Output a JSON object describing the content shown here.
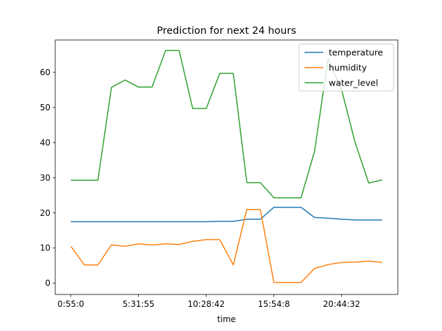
{
  "chart_data": {
    "type": "line",
    "title": "Prediction for next 24 hours",
    "xlabel": "time",
    "ylabel": "",
    "grid": false,
    "legend_position": "top-right",
    "x_ticks": [
      "0:55:0",
      "5:31:55",
      "10:28:42",
      "15:54:8",
      "20:44:32"
    ],
    "x_tick_index": [
      0,
      5,
      10,
      15,
      20
    ],
    "xlim": [
      -1.15,
      24.15
    ],
    "ylim": [
      -3.2,
      69.2
    ],
    "y_ticks": [
      0,
      10,
      20,
      30,
      40,
      50,
      60
    ],
    "series": [
      {
        "name": "temperature",
        "color": "#1f77b4",
        "values": [
          17.5,
          17.5,
          17.5,
          17.5,
          17.5,
          17.5,
          17.5,
          17.5,
          17.5,
          17.5,
          17.5,
          17.6,
          17.6,
          18.2,
          18.2,
          21.6,
          21.6,
          21.6,
          18.7,
          18.5,
          18.2,
          18.0,
          18.0,
          18.0
        ]
      },
      {
        "name": "humidity",
        "color": "#ff7f0e",
        "values": [
          10.5,
          5.2,
          5.2,
          10.9,
          10.5,
          11.2,
          10.9,
          11.2,
          11.0,
          11.9,
          12.4,
          12.4,
          5.2,
          21.0,
          20.9,
          0.2,
          0.2,
          0.2,
          4.2,
          5.3,
          5.9,
          6.0,
          6.3,
          5.9
        ]
      },
      {
        "name": "water_level",
        "color": "#2ca02c",
        "values": [
          29.3,
          29.3,
          29.3,
          55.7,
          57.8,
          55.8,
          55.8,
          66.2,
          66.2,
          49.7,
          49.7,
          59.7,
          59.7,
          28.6,
          28.6,
          24.3,
          24.3,
          24.3,
          37.5,
          63.8,
          55.0,
          40.0,
          28.5,
          29.4
        ]
      }
    ]
  }
}
